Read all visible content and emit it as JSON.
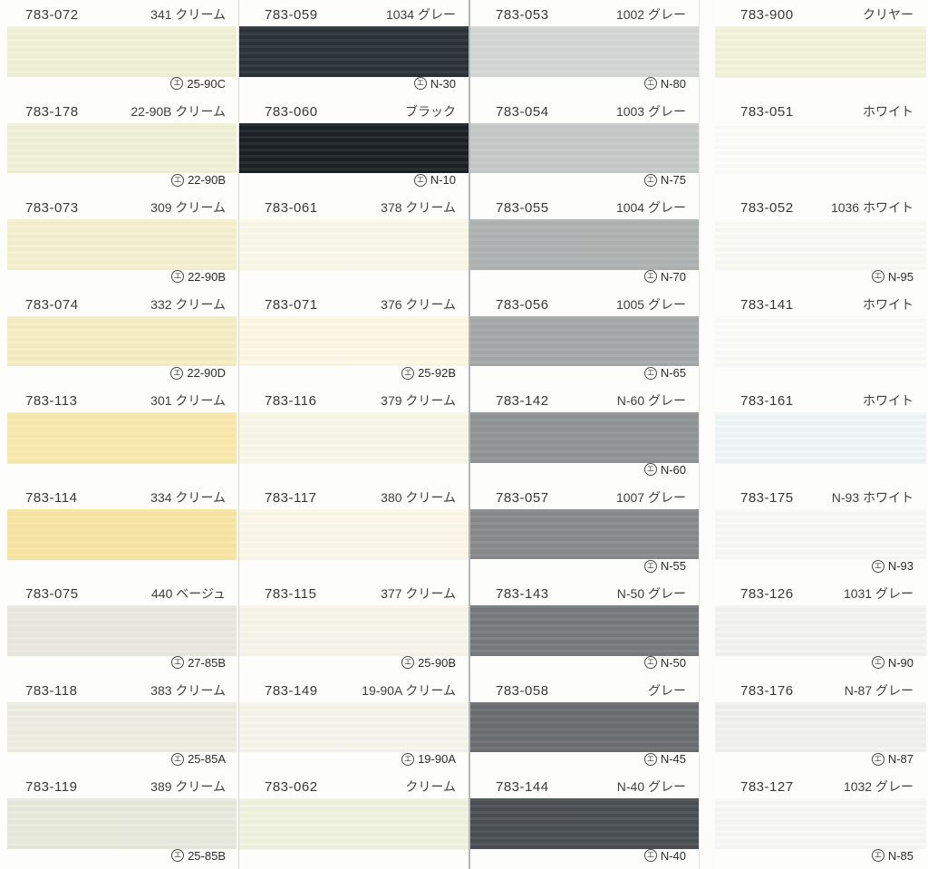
{
  "mark_symbol": "エ",
  "columns": [
    {
      "cells": [
        {
          "code": "783-072",
          "name": "341 クリーム",
          "mark": "25-90C",
          "color": "#f0f2d6"
        },
        {
          "code": "783-178",
          "name": "22-90B クリーム",
          "mark": "22-90B",
          "color": "#f0f1d8"
        },
        {
          "code": "783-073",
          "name": "309 クリーム",
          "mark": "22-90B",
          "color": "#f5f0cf"
        },
        {
          "code": "783-074",
          "name": "332 クリーム",
          "mark": "22-90D",
          "color": "#f5edc3"
        },
        {
          "code": "783-113",
          "name": "301 クリーム",
          "mark": null,
          "color": "#f8e9ad"
        },
        {
          "code": "783-114",
          "name": "334 クリーム",
          "mark": null,
          "color": "#f7e5a2"
        },
        {
          "code": "783-075",
          "name": "440 ベージュ",
          "mark": "27-85B",
          "color": "#e9e9e0"
        },
        {
          "code": "783-118",
          "name": "383 クリーム",
          "mark": "25-85A",
          "color": "#eeede2"
        },
        {
          "code": "783-119",
          "name": "389 クリーム",
          "mark": "25-85B",
          "color": "#e7eadb"
        }
      ]
    },
    {
      "cells": [
        {
          "code": "783-059",
          "name": "1034 グレー",
          "mark": "N-30",
          "color": "#2b3238"
        },
        {
          "code": "783-060",
          "name": "ブラック",
          "mark": "N-10",
          "color": "#1b2125"
        },
        {
          "code": "783-061",
          "name": "378 クリーム",
          "mark": null,
          "color": "#faf8e9"
        },
        {
          "code": "783-071",
          "name": "376 クリーム",
          "mark": "25-92B",
          "color": "#fdf8e3"
        },
        {
          "code": "783-116",
          "name": "379 クリーム",
          "mark": null,
          "color": "#f9f7e8"
        },
        {
          "code": "783-117",
          "name": "380 クリーム",
          "mark": null,
          "color": "#fbf8e9"
        },
        {
          "code": "783-115",
          "name": "377 クリーム",
          "mark": "25-90B",
          "color": "#f8f6eb"
        },
        {
          "code": "783-149",
          "name": "19-90A クリーム",
          "mark": "19-90A",
          "color": "#f7f6ed"
        },
        {
          "code": "783-062",
          "name": "クリーム",
          "mark": null,
          "color": "#f0f3df"
        }
      ]
    },
    {
      "cells": [
        {
          "code": "783-053",
          "name": "1002 グレー",
          "mark": "N-80",
          "color": "#d4d7d5"
        },
        {
          "code": "783-054",
          "name": "1003 グレー",
          "mark": "N-75",
          "color": "#c5c9c8"
        },
        {
          "code": "783-055",
          "name": "1004 グレー",
          "mark": "N-70",
          "color": "#aeb2b1"
        },
        {
          "code": "783-056",
          "name": "1005 グレー",
          "mark": "N-65",
          "color": "#a4a8a9"
        },
        {
          "code": "783-142",
          "name": "N-60 グレー",
          "mark": "N-60",
          "color": "#909495"
        },
        {
          "code": "783-057",
          "name": "1007 グレー",
          "mark": "N-55",
          "color": "#87898b"
        },
        {
          "code": "783-143",
          "name": "N-50 グレー",
          "mark": "N-50",
          "color": "#767a7c"
        },
        {
          "code": "783-058",
          "name": "グレー",
          "mark": "N-45",
          "color": "#6a6e71"
        },
        {
          "code": "783-144",
          "name": "N-40 グレー",
          "mark": "N-40",
          "color": "#4a4f54"
        }
      ]
    },
    {
      "cells": [
        {
          "code": "783-900",
          "name": "クリヤー",
          "mark": null,
          "color": "#f1f3da"
        },
        {
          "code": "783-051",
          "name": "ホワイト",
          "mark": null,
          "color": "#fcfdf9"
        },
        {
          "code": "783-052",
          "name": "1036 ホワイト",
          "mark": "N-95",
          "color": "#fafbf5"
        },
        {
          "code": "783-141",
          "name": "ホワイト",
          "mark": null,
          "color": "#fbfcf8"
        },
        {
          "code": "783-161",
          "name": "ホワイト",
          "mark": null,
          "color": "#f0f6f6"
        },
        {
          "code": "783-175",
          "name": "N-93 ホワイト",
          "mark": "N-93",
          "color": "#f9faf8"
        },
        {
          "code": "783-126",
          "name": "1031 グレー",
          "mark": "N-90",
          "color": "#f3f4f2"
        },
        {
          "code": "783-176",
          "name": "N-87 グレー",
          "mark": "N-87",
          "color": "#f1f2f0"
        },
        {
          "code": "783-127",
          "name": "1032 グレー",
          "mark": "N-85",
          "color": "#f8f9f7"
        }
      ]
    }
  ]
}
